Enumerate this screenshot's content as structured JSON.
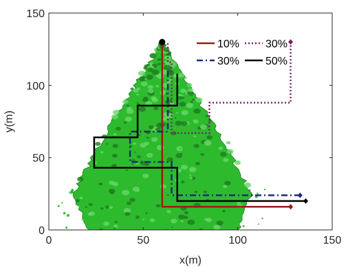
{
  "chart_data": {
    "type": "line",
    "xlabel": "x(m)",
    "ylabel": "y(m)",
    "xlim": [
      0,
      150
    ],
    "ylim": [
      0,
      150
    ],
    "xticks": [
      0,
      50,
      100,
      150
    ],
    "yticks": [
      0,
      50,
      100,
      150
    ],
    "grid": false,
    "legend_placement": "top-right",
    "background_region": {
      "kind": "green contour field",
      "apex": [
        60,
        130
      ],
      "color": "#2dbb2d",
      "dark_color": "#1f7a1f"
    },
    "start_point": [
      60,
      130
    ],
    "series": [
      {
        "name": "10%",
        "color": "#a01818",
        "dash": "solid",
        "points": [
          [
            60,
            130
          ],
          [
            60,
            16
          ],
          [
            128,
            16
          ]
        ],
        "end_marker": [
          128,
          16
        ]
      },
      {
        "name": "30%",
        "color": "#7a1e6a",
        "dash": "dotted",
        "points": [
          [
            128,
            130
          ],
          [
            128,
            88
          ],
          [
            85,
            88
          ],
          [
            85,
            67
          ],
          [
            65,
            67
          ],
          [
            65,
            116
          ],
          [
            63,
            116
          ],
          [
            63,
            130
          ]
        ],
        "end_marker": [
          128,
          130
        ]
      },
      {
        "name": "30%",
        "color": "#1a2a7a",
        "dash": "dashdot",
        "points": [
          [
            63,
            110
          ],
          [
            63,
            68
          ],
          [
            43,
            68
          ],
          [
            43,
            47
          ],
          [
            65,
            47
          ],
          [
            65,
            24
          ],
          [
            133,
            24
          ]
        ],
        "end_marker": [
          133,
          24
        ]
      },
      {
        "name": "50%",
        "color": "#000000",
        "dash": "solid",
        "points": [
          [
            68,
            108
          ],
          [
            68,
            86
          ],
          [
            47,
            86
          ],
          [
            47,
            64
          ],
          [
            24,
            64
          ],
          [
            24,
            43
          ],
          [
            68,
            43
          ],
          [
            68,
            20
          ],
          [
            136,
            20
          ]
        ],
        "end_marker": [
          136,
          20
        ]
      }
    ]
  }
}
